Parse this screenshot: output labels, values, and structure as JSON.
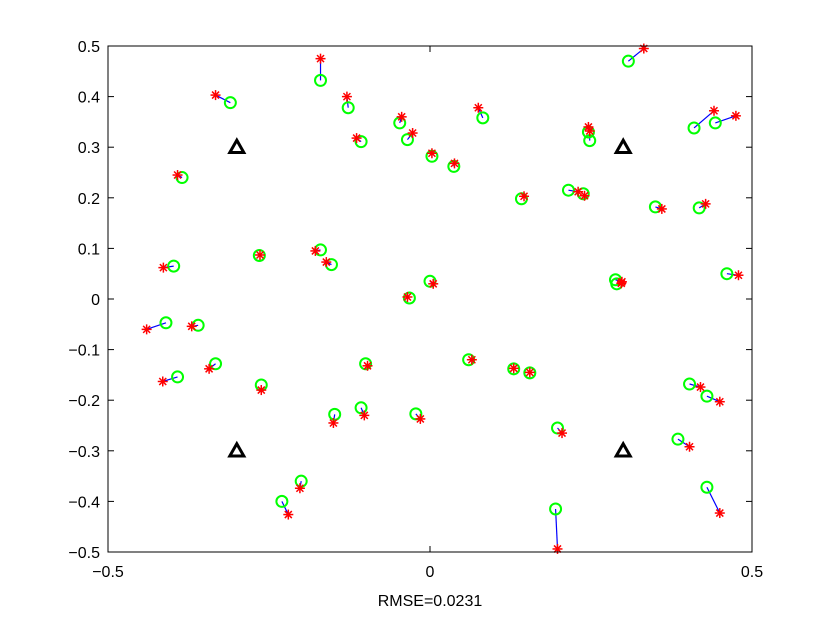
{
  "chart_data": {
    "type": "scatter",
    "title": "",
    "xlabel": "RMSE=0.0231",
    "ylabel": "",
    "xlim": [
      -0.5,
      0.5
    ],
    "ylim": [
      -0.5,
      0.5
    ],
    "grid": false,
    "legend": "none",
    "x_ticks": [
      -0.5,
      0,
      0.5
    ],
    "x_tick_labels": [
      "−0.5",
      "0",
      "0.5"
    ],
    "y_ticks": [
      -0.5,
      -0.4,
      -0.3,
      -0.2,
      -0.1,
      0,
      0.1,
      0.2,
      0.3,
      0.4,
      0.5
    ],
    "y_tick_labels": [
      "−0.5",
      "−0.4",
      "−0.3",
      "−0.2",
      "−0.1",
      "0",
      "0.1",
      "0.2",
      "0.3",
      "0.4",
      "0.5"
    ],
    "anchors": [
      [
        -0.3,
        0.3
      ],
      [
        0.3,
        0.3
      ],
      [
        -0.3,
        -0.3
      ],
      [
        0.3,
        -0.3
      ]
    ],
    "pairs": [
      {
        "est": [
          -0.17,
          0.432
        ],
        "true": [
          -0.17,
          0.475
        ]
      },
      {
        "est": [
          -0.31,
          0.388
        ],
        "true": [
          -0.333,
          0.403
        ]
      },
      {
        "est": [
          -0.127,
          0.378
        ],
        "true": [
          -0.129,
          0.4
        ]
      },
      {
        "est": [
          -0.107,
          0.311
        ],
        "true": [
          -0.114,
          0.318
        ]
      },
      {
        "est": [
          -0.047,
          0.348
        ],
        "true": [
          -0.044,
          0.36
        ]
      },
      {
        "est": [
          -0.035,
          0.315
        ],
        "true": [
          -0.027,
          0.328
        ]
      },
      {
        "est": [
          0.003,
          0.282
        ],
        "true": [
          0.003,
          0.288
        ]
      },
      {
        "est": [
          0.037,
          0.262
        ],
        "true": [
          0.038,
          0.268
        ]
      },
      {
        "est": [
          0.082,
          0.358
        ],
        "true": [
          0.075,
          0.378
        ]
      },
      {
        "est": [
          0.308,
          0.47
        ],
        "true": [
          0.332,
          0.495
        ]
      },
      {
        "est": [
          0.246,
          0.33
        ],
        "true": [
          0.246,
          0.34
        ]
      },
      {
        "est": [
          0.248,
          0.313
        ],
        "true": [
          0.248,
          0.332
        ]
      },
      {
        "est": [
          0.41,
          0.338
        ],
        "true": [
          0.441,
          0.372
        ]
      },
      {
        "est": [
          0.443,
          0.348
        ],
        "true": [
          0.475,
          0.362
        ]
      },
      {
        "est": [
          -0.385,
          0.24
        ],
        "true": [
          -0.392,
          0.245
        ]
      },
      {
        "est": [
          0.142,
          0.198
        ],
        "true": [
          0.146,
          0.203
        ]
      },
      {
        "est": [
          0.215,
          0.215
        ],
        "true": [
          0.23,
          0.212
        ]
      },
      {
        "est": [
          0.238,
          0.208
        ],
        "true": [
          0.24,
          0.204
        ]
      },
      {
        "est": [
          0.35,
          0.182
        ],
        "true": [
          0.36,
          0.178
        ]
      },
      {
        "est": [
          0.418,
          0.18
        ],
        "true": [
          0.428,
          0.188
        ]
      },
      {
        "est": [
          -0.265,
          0.086
        ],
        "true": [
          -0.264,
          0.087
        ]
      },
      {
        "est": [
          -0.17,
          0.097
        ],
        "true": [
          -0.178,
          0.095
        ]
      },
      {
        "est": [
          -0.153,
          0.068
        ],
        "true": [
          -0.161,
          0.073
        ]
      },
      {
        "est": [
          -0.398,
          0.065
        ],
        "true": [
          -0.414,
          0.062
        ]
      },
      {
        "est": [
          0.461,
          0.05
        ],
        "true": [
          0.479,
          0.047
        ]
      },
      {
        "est": [
          0.0,
          0.035
        ],
        "true": [
          0.005,
          0.03
        ]
      },
      {
        "est": [
          0.288,
          0.038
        ],
        "true": [
          0.298,
          0.034
        ]
      },
      {
        "est": [
          0.29,
          0.03
        ],
        "true": [
          0.297,
          0.031
        ]
      },
      {
        "est": [
          -0.032,
          0.002
        ],
        "true": [
          -0.035,
          0.004
        ]
      },
      {
        "est": [
          -0.41,
          -0.047
        ],
        "true": [
          -0.44,
          -0.06
        ]
      },
      {
        "est": [
          -0.36,
          -0.052
        ],
        "true": [
          -0.37,
          -0.054
        ]
      },
      {
        "est": [
          -0.333,
          -0.128
        ],
        "true": [
          -0.343,
          -0.138
        ]
      },
      {
        "est": [
          -0.392,
          -0.154
        ],
        "true": [
          -0.415,
          -0.163
        ]
      },
      {
        "est": [
          -0.262,
          -0.17
        ],
        "true": [
          -0.262,
          -0.18
        ]
      },
      {
        "est": [
          -0.1,
          -0.128
        ],
        "true": [
          -0.097,
          -0.132
        ]
      },
      {
        "est": [
          0.06,
          -0.12
        ],
        "true": [
          0.065,
          -0.12
        ]
      },
      {
        "est": [
          0.13,
          -0.138
        ],
        "true": [
          0.13,
          -0.137
        ]
      },
      {
        "est": [
          0.155,
          -0.146
        ],
        "true": [
          0.155,
          -0.145
        ]
      },
      {
        "est": [
          -0.148,
          -0.228
        ],
        "true": [
          -0.15,
          -0.245
        ]
      },
      {
        "est": [
          -0.107,
          -0.215
        ],
        "true": [
          -0.102,
          -0.23
        ]
      },
      {
        "est": [
          -0.022,
          -0.227
        ],
        "true": [
          -0.015,
          -0.237
        ]
      },
      {
        "est": [
          0.198,
          -0.255
        ],
        "true": [
          0.205,
          -0.265
        ]
      },
      {
        "est": [
          0.403,
          -0.168
        ],
        "true": [
          0.42,
          -0.174
        ]
      },
      {
        "est": [
          0.43,
          -0.192
        ],
        "true": [
          0.45,
          -0.203
        ]
      },
      {
        "est": [
          0.385,
          -0.277
        ],
        "true": [
          0.403,
          -0.292
        ]
      },
      {
        "est": [
          -0.2,
          -0.36
        ],
        "true": [
          -0.202,
          -0.374
        ]
      },
      {
        "est": [
          -0.23,
          -0.4
        ],
        "true": [
          -0.22,
          -0.426
        ]
      },
      {
        "est": [
          0.195,
          -0.415
        ],
        "true": [
          0.198,
          -0.494
        ]
      },
      {
        "est": [
          0.43,
          -0.372
        ],
        "true": [
          0.45,
          -0.423
        ]
      }
    ],
    "colors": {
      "estimate": "#00ff00",
      "true": "#ff0000",
      "error_line": "#0000ff",
      "anchor": "#000000",
      "axes": "#000000"
    },
    "marker_names": {
      "estimate": "circle",
      "true": "asterisk",
      "anchor": "triangle"
    }
  }
}
